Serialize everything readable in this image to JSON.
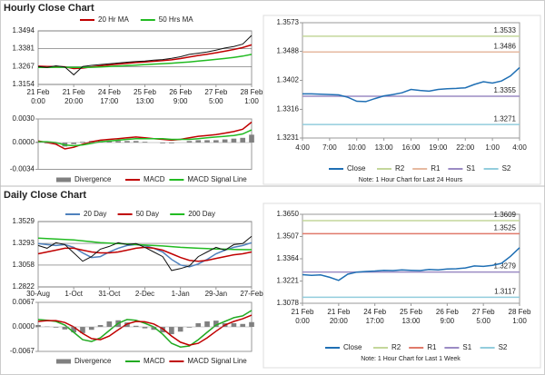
{
  "sections": [
    {
      "title": "Hourly Close Chart"
    },
    {
      "title": "Daily Close Chart"
    }
  ],
  "chart_data": [
    {
      "type": "line",
      "grid": true,
      "categories": [
        [
          "21 Feb",
          "0:00"
        ],
        null,
        null,
        null,
        [
          "21 Feb",
          "20:00"
        ],
        null,
        null,
        null,
        [
          "24 Feb",
          "17:00"
        ],
        null,
        null,
        null,
        [
          "25 Feb",
          "13:00"
        ],
        null,
        null,
        null,
        [
          "26 Feb",
          "9:00"
        ],
        null,
        null,
        null,
        [
          "27 Feb",
          "5:00"
        ],
        null,
        null,
        null,
        [
          "28 Feb",
          "1:00"
        ]
      ],
      "ylim": [
        1.3154,
        1.3494
      ],
      "yticks": [
        1.3154,
        1.3267,
        1.3381,
        1.3494
      ],
      "series": [
        {
          "name": "20 Hr MA",
          "color": "#c00000",
          "values": [
            1.327,
            1.3268,
            1.3268,
            1.3266,
            1.3255,
            1.3258,
            1.3265,
            1.3272,
            1.3278,
            1.3283,
            1.3288,
            1.3293,
            1.3297,
            1.3301,
            1.3305,
            1.331,
            1.3318,
            1.3328,
            1.3338,
            1.3346,
            1.3355,
            1.3365,
            1.3376,
            1.3388,
            1.3405
          ]
        },
        {
          "name": "50 Hrs MA",
          "color": "#22bb22",
          "values": [
            1.3262,
            1.3262,
            1.3263,
            1.3263,
            1.3262,
            1.3262,
            1.3263,
            1.3265,
            1.3268,
            1.3271,
            1.3274,
            1.3277,
            1.328,
            1.3283,
            1.3286,
            1.3289,
            1.3293,
            1.3297,
            1.3302,
            1.3307,
            1.3313,
            1.3319,
            1.3326,
            1.3334,
            1.3345
          ]
        }
      ],
      "price": {
        "color": "#111111",
        "values": [
          1.3268,
          1.3262,
          1.3272,
          1.3265,
          1.3215,
          1.3268,
          1.3275,
          1.328,
          1.3285,
          1.329,
          1.3295,
          1.33,
          1.3302,
          1.3308,
          1.3312,
          1.332,
          1.333,
          1.3345,
          1.3352,
          1.336,
          1.3372,
          1.3385,
          1.3395,
          1.341,
          1.3465
        ]
      }
    },
    {
      "type": "macd",
      "ylim": [
        -0.0034,
        0.003
      ],
      "yticks": [
        {
          "value": 0.003,
          "label": "0.0030"
        },
        {
          "value": 0,
          "label": "0.0000"
        },
        -0.0034
      ],
      "series": [
        {
          "name": "Divergence",
          "kind": "bar",
          "color": "#808080",
          "values": [
            0.0001,
            -0.0001,
            -0.0002,
            -0.0005,
            -0.0002,
            0.0001,
            0.0002,
            0.0002,
            0.0002,
            0.0002,
            0.0002,
            0.0002,
            0.0001,
            0.0,
            -0.0001,
            -0.0001,
            0.0,
            0.0002,
            0.0003,
            0.0003,
            0.0003,
            0.0004,
            0.0005,
            0.0006,
            0.001
          ]
        },
        {
          "name": "MACD",
          "color": "#c00000",
          "values": [
            0.0002,
            0.0,
            -0.0002,
            -0.0008,
            -0.0006,
            -0.0002,
            0.0001,
            0.0003,
            0.0004,
            0.0005,
            0.0006,
            0.0007,
            0.0006,
            0.0005,
            0.0004,
            0.0003,
            0.0004,
            0.0006,
            0.0008,
            0.0009,
            0.001,
            0.0012,
            0.0014,
            0.0017,
            0.0026
          ]
        },
        {
          "name": "MACD Signal Line",
          "color": "#22bb22",
          "values": [
            0.0001,
            0.0001,
            0.0,
            -0.0003,
            -0.0004,
            -0.0003,
            -0.0001,
            0.0001,
            0.0002,
            0.0003,
            0.0004,
            0.0005,
            0.0005,
            0.0005,
            0.0005,
            0.0004,
            0.0004,
            0.0004,
            0.0005,
            0.0006,
            0.0007,
            0.0008,
            0.0009,
            0.0011,
            0.0016
          ]
        }
      ]
    },
    {
      "type": "line",
      "note": "Note: 1 Hour Chart for Last 24 Hours",
      "categories": [
        "4:00",
        null,
        null,
        "7:00",
        null,
        null,
        "10:00",
        null,
        null,
        "13:00",
        null,
        null,
        "16:00",
        null,
        null,
        "19:00",
        null,
        null,
        "22:00",
        null,
        null,
        "1:00",
        null,
        null,
        "4:00"
      ],
      "ylim": [
        1.3231,
        1.3573
      ],
      "yticks": [
        1.3231,
        1.3316,
        1.3402,
        1.3488,
        1.3573
      ],
      "series": [
        {
          "name": "Close",
          "color": "#1f6fb4",
          "values": [
            1.3362,
            1.3362,
            1.3361,
            1.336,
            1.3359,
            1.3352,
            1.334,
            1.3339,
            1.3348,
            1.3356,
            1.336,
            1.3365,
            1.3375,
            1.3372,
            1.337,
            1.3375,
            1.3377,
            1.3378,
            1.338,
            1.339,
            1.3398,
            1.3394,
            1.34,
            1.3415,
            1.344
          ]
        }
      ],
      "levels": [
        {
          "name": "R2",
          "color": "#c4d79b",
          "value": 1.3533
        },
        {
          "name": "R1",
          "color": "#e6b9a0",
          "value": 1.3486
        },
        {
          "name": "S1",
          "color": "#9b8bc4",
          "value": 1.3355
        },
        {
          "name": "S2",
          "color": "#93cddd",
          "value": 1.3271
        }
      ]
    },
    {
      "type": "line",
      "grid": true,
      "categories": [
        "30-Aug",
        null,
        null,
        null,
        "1-Oct",
        null,
        null,
        null,
        "31-Oct",
        null,
        null,
        null,
        "2-Dec",
        null,
        null,
        null,
        "1-Jan",
        null,
        null,
        null,
        "29-Jan",
        null,
        null,
        null,
        "27-Feb"
      ],
      "ylim": [
        1.2822,
        1.3529
      ],
      "yticks": [
        1.2822,
        1.3058,
        1.3293,
        1.3529
      ],
      "series": [
        {
          "name": "20 Day",
          "color": "#4f81bd",
          "values": [
            1.329,
            1.328,
            1.327,
            1.328,
            1.325,
            1.319,
            1.314,
            1.315,
            1.32,
            1.324,
            1.327,
            1.328,
            1.327,
            1.324,
            1.32,
            1.312,
            1.306,
            1.304,
            1.307,
            1.312,
            1.318,
            1.322,
            1.325,
            1.327,
            1.33
          ]
        },
        {
          "name": "50 Day",
          "color": "#c00000",
          "values": [
            1.318,
            1.32,
            1.322,
            1.324,
            1.324,
            1.322,
            1.32,
            1.319,
            1.319,
            1.32,
            1.322,
            1.324,
            1.325,
            1.324,
            1.322,
            1.318,
            1.314,
            1.311,
            1.31,
            1.311,
            1.313,
            1.315,
            1.317,
            1.318,
            1.32
          ]
        },
        {
          "name": "200 Day",
          "color": "#22bb22",
          "values": [
            1.335,
            1.3345,
            1.334,
            1.3335,
            1.333,
            1.332,
            1.331,
            1.33,
            1.3295,
            1.329,
            1.3285,
            1.328,
            1.3275,
            1.327,
            1.3265,
            1.3258,
            1.325,
            1.3245,
            1.324,
            1.3236,
            1.3232,
            1.323,
            1.3228,
            1.3226,
            1.3225
          ]
        }
      ],
      "price": {
        "color": "#111111",
        "values": [
          1.327,
          1.324,
          1.33,
          1.328,
          1.319,
          1.31,
          1.315,
          1.323,
          1.326,
          1.33,
          1.328,
          1.329,
          1.325,
          1.32,
          1.315,
          1.3,
          1.302,
          1.305,
          1.315,
          1.32,
          1.325,
          1.322,
          1.328,
          1.329,
          1.337
        ]
      }
    },
    {
      "type": "macd",
      "ylim": [
        -0.0067,
        0.0067
      ],
      "yticks": [
        0.0067,
        {
          "value": 0,
          "label": "0.0000"
        },
        -0.0067
      ],
      "series": [
        {
          "name": "Divergence",
          "kind": "bar",
          "color": "#808080",
          "values": [
            0.0005,
            0.0001,
            -0.0002,
            -0.0007,
            -0.0015,
            -0.0017,
            -0.0008,
            0.0005,
            0.0015,
            0.0018,
            0.0012,
            0.0003,
            -0.0004,
            -0.0008,
            -0.0015,
            -0.002,
            -0.0013,
            -0.0002,
            0.001,
            0.0015,
            0.0017,
            0.001,
            0.001,
            0.0008,
            0.0013
          ]
        },
        {
          "name": "MACD",
          "color": "#22aa22",
          "values": [
            0.002,
            0.0018,
            0.0015,
            0.0005,
            -0.0015,
            -0.0035,
            -0.004,
            -0.003,
            -0.001,
            0.001,
            0.002,
            0.0018,
            0.001,
            0.0,
            -0.002,
            -0.0045,
            -0.0055,
            -0.0052,
            -0.0035,
            -0.0015,
            0.0005,
            0.0015,
            0.0025,
            0.003,
            0.0045
          ]
        },
        {
          "name": "MACD Signal Line",
          "color": "#c00000",
          "values": [
            0.0015,
            0.0017,
            0.0017,
            0.0012,
            0.0,
            -0.0018,
            -0.0032,
            -0.0035,
            -0.0025,
            -0.0008,
            0.0008,
            0.0015,
            0.0014,
            0.0008,
            -0.0005,
            -0.0025,
            -0.0042,
            -0.005,
            -0.0045,
            -0.003,
            -0.0012,
            0.0005,
            0.0015,
            0.0022,
            0.0032
          ]
        }
      ]
    },
    {
      "type": "line",
      "note": "Note: 1 Hour Chart for Last 1 Week",
      "categories": [
        [
          "21 Feb",
          "0:00"
        ],
        null,
        null,
        null,
        [
          "21 Feb",
          "20:00"
        ],
        null,
        null,
        null,
        [
          "24 Feb",
          "17:00"
        ],
        null,
        null,
        null,
        [
          "25 Feb",
          "13:00"
        ],
        null,
        null,
        null,
        [
          "26 Feb",
          "9:00"
        ],
        null,
        null,
        null,
        [
          "27 Feb",
          "5:00"
        ],
        null,
        null,
        null,
        [
          "28 Feb",
          "1:00"
        ]
      ],
      "ylim": [
        1.3078,
        1.365
      ],
      "yticks": [
        1.3078,
        1.3221,
        1.3364,
        1.3507,
        {
          "value": 1.365,
          "label": "1.3650"
        }
      ],
      "series": [
        {
          "name": "Close",
          "color": "#1f6fb4",
          "values": [
            1.3262,
            1.3258,
            1.326,
            1.3245,
            1.3225,
            1.3265,
            1.3278,
            1.3282,
            1.3285,
            1.329,
            1.3288,
            1.3292,
            1.329,
            1.3288,
            1.3295,
            1.3292,
            1.3298,
            1.33,
            1.3305,
            1.3318,
            1.3315,
            1.3322,
            1.3335,
            1.338,
            1.3435
          ]
        }
      ],
      "levels": [
        {
          "name": "R2",
          "color": "#c4d79b",
          "value": 1.3609
        },
        {
          "name": "R1",
          "color": "#e07a6a",
          "value": 1.3525
        },
        {
          "name": "S1",
          "color": "#9b8bc4",
          "value": 1.3279
        },
        {
          "name": "S2",
          "color": "#93cddd",
          "value": 1.3117
        }
      ]
    }
  ]
}
